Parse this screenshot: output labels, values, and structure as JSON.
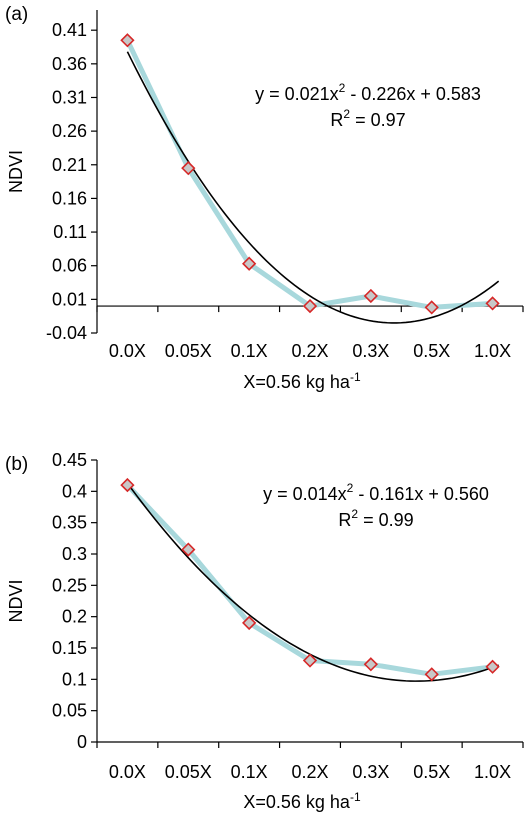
{
  "chart_data": [
    {
      "type": "scatter",
      "panel_label": "(a)",
      "categories": [
        "0.0X",
        "0.05X",
        "0.1X",
        "0.2X",
        "0.3X",
        "0.5X",
        "1.0X"
      ],
      "values": [
        0.395,
        0.205,
        0.063,
        0.0,
        0.015,
        -0.002,
        0.004
      ],
      "x_index": [
        1,
        2,
        3,
        4,
        5,
        6,
        7
      ],
      "fit": {
        "a": 0.021,
        "b": -0.226,
        "c": 0.583
      },
      "equation_text": "y = 0.021x² - 0.226x + 0.583",
      "equation_main": "y = 0.021x",
      "equation_rest": " - 0.226x + 0.583",
      "r2_value": " = 0.97",
      "ylabel": "NDVI",
      "xlabel_main": "X=0.56 kg ha",
      "xlabel_sup": "-1",
      "yticks": [
        "-0.04",
        "0.01",
        "0.06",
        "0.11",
        "0.16",
        "0.21",
        "0.26",
        "0.31",
        "0.36",
        "0.41"
      ],
      "ylim": [
        -0.04,
        0.44
      ],
      "grid": false,
      "colors": {
        "line": "#a8d8dc",
        "marker_edge": "#d62828",
        "marker_fill": "#c8c8c8",
        "fit": "#000000"
      }
    },
    {
      "type": "scatter",
      "panel_label": "(b)",
      "categories": [
        "0.0X",
        "0.05X",
        "0.1X",
        "0.2X",
        "0.3X",
        "0.5X",
        "1.0X"
      ],
      "values": [
        0.41,
        0.307,
        0.19,
        0.13,
        0.124,
        0.108,
        0.12
      ],
      "x_index": [
        1,
        2,
        3,
        4,
        5,
        6,
        7
      ],
      "fit": {
        "a": 0.014,
        "b": -0.161,
        "c": 0.56
      },
      "equation_text": "y = 0.014x² - 0.161x + 0.560",
      "equation_main": "y = 0.014x",
      "equation_rest": " - 0.161x + 0.560",
      "r2_value": " = 0.99",
      "ylabel": "NDVI",
      "xlabel_main": "X=0.56 kg ha",
      "xlabel_sup": "-1",
      "yticks": [
        "0",
        "0.05",
        "0.1",
        "0.15",
        "0.2",
        "0.25",
        "0.3",
        "0.35",
        "0.4",
        "0.45"
      ],
      "ylim": [
        0,
        0.45
      ],
      "grid": false,
      "colors": {
        "line": "#a8d8dc",
        "marker_edge": "#d62828",
        "marker_fill": "#c8c8c8",
        "fit": "#000000"
      }
    }
  ]
}
